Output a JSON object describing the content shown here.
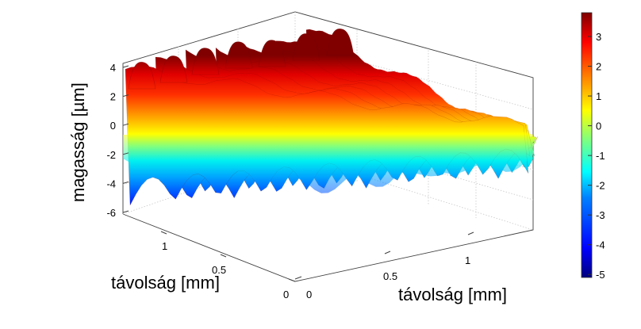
{
  "chart_data": {
    "type": "surface3d",
    "title": "",
    "zlabel": "magasság [µm]",
    "xlabel": "távolság [mm]",
    "ylabel": "távolság [mm]",
    "zlim": [
      -6,
      4
    ],
    "zticks": [
      "4",
      "2",
      "0",
      "-2",
      "-4",
      "-6"
    ],
    "xticks": [
      "0",
      "0.5",
      "1"
    ],
    "yticks": [
      "0",
      "0.5",
      "1"
    ],
    "grid": true,
    "colormap": "jet",
    "colorbar": {
      "range": [
        -5.1,
        3.8
      ],
      "ticks": [
        "3",
        "2",
        "1",
        "0",
        "-1",
        "-2",
        "-3",
        "-4",
        "-5"
      ],
      "colors": [
        "#00007f",
        "#0000ff",
        "#007fff",
        "#00ffff",
        "#7fff7f",
        "#ffff00",
        "#ff7f00",
        "#ff0000",
        "#7f0000"
      ]
    },
    "surface": {
      "description_rows": 7,
      "crest_heights": [
        3.8,
        3.6,
        3.5,
        3.4,
        3.5,
        3.6,
        3.7
      ],
      "trough_depths": [
        -5.5,
        -5.6,
        -5.2,
        -5.0,
        -4.6,
        -4.2,
        -3.8
      ]
    }
  }
}
